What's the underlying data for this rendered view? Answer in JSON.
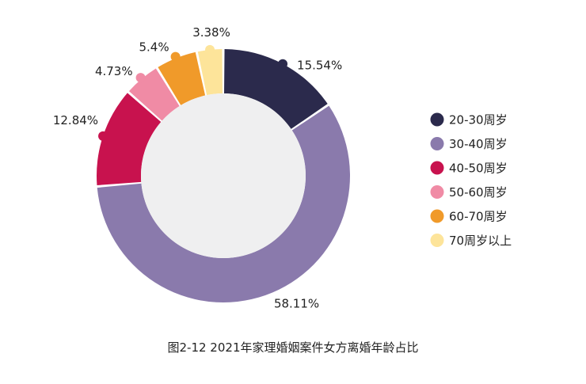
{
  "chart_data": {
    "type": "pie",
    "variant": "donut",
    "caption": "图2-12  2021年家理婚姻案件女方离婚年龄占比",
    "legend_position": "right",
    "slices": [
      {
        "name": "20-30周岁",
        "value": 15.54,
        "label": "15.54%",
        "color": "#2b2a4c"
      },
      {
        "name": "30-40周岁",
        "value": 58.11,
        "label": "58.11%",
        "color": "#8a7aac"
      },
      {
        "name": "40-50周岁",
        "value": 12.84,
        "label": "12.84%",
        "color": "#c8124e"
      },
      {
        "name": "50-60周岁",
        "value": 4.73,
        "label": "4.73%",
        "color": "#f08ba5"
      },
      {
        "name": "60-70周岁",
        "value": 5.4,
        "label": "5.4%",
        "color": "#f09a2a"
      },
      {
        "name": "70周岁以上",
        "value": 3.38,
        "label": "3.38%",
        "color": "#fde49a"
      }
    ],
    "center_fill": "#efeff0"
  }
}
